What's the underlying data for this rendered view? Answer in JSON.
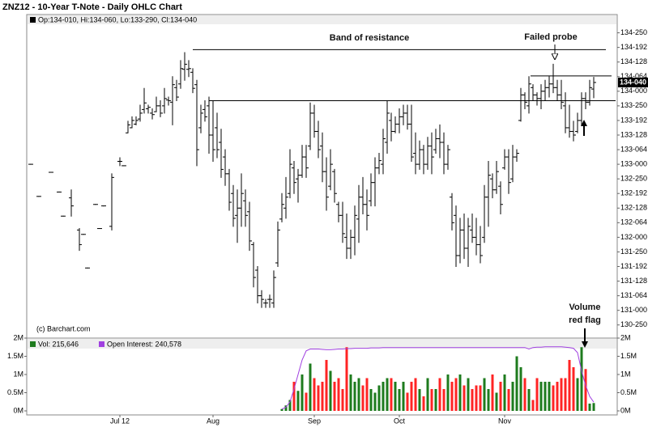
{
  "chart_data": {
    "type": "ohlc",
    "title": "ZNZ12 - 10-Year T-Note - Daily OHLC Chart",
    "credit": "(c) Barchart.com",
    "annotations": [
      "Band of resistance",
      "Failed probe",
      "Volume",
      "red flag"
    ],
    "last_label": "134-040",
    "last_color": "#000000",
    "resistance_levels": [
      134.57,
      133.87,
      134.21
    ],
    "categories": [
      null,
      null,
      null,
      null,
      null,
      null,
      null,
      null,
      null,
      null,
      null,
      null,
      null,
      null,
      null,
      null,
      null,
      null,
      null,
      null,
      null,
      null,
      "Jul 12",
      null,
      null,
      null,
      null,
      null,
      null,
      null,
      null,
      null,
      null,
      null,
      null,
      null,
      null,
      null,
      null,
      null,
      null,
      null,
      null,
      null,
      null,
      "Aug",
      null,
      null,
      null,
      null,
      null,
      null,
      null,
      null,
      null,
      null,
      null,
      null,
      null,
      null,
      null,
      null,
      null,
      null,
      null,
      null,
      null,
      null,
      null,
      null,
      "Sep",
      null,
      null,
      null,
      null,
      null,
      null,
      null,
      null,
      null,
      null,
      null,
      null,
      null,
      null,
      null,
      null,
      null,
      null,
      null,
      null,
      "Oct",
      null,
      null,
      null,
      null,
      null,
      null,
      null,
      null,
      null,
      null,
      null,
      null,
      null,
      null,
      null,
      null,
      null,
      null,
      null,
      null,
      null,
      null,
      null,
      null,
      null,
      "Nov",
      null,
      null,
      null,
      null,
      null,
      null,
      null,
      null,
      null,
      null,
      null,
      null,
      null,
      null,
      null,
      null,
      null,
      null,
      null,
      null,
      null,
      null
    ],
    "series": [
      {
        "name": "Op:134-010, Hi:134-060, Lo:133-290, Cl:134-040",
        "color": "#000000",
        "open": [
          133.0,
          null,
          132.56,
          null,
          null,
          132.89,
          null,
          132.62,
          132.29,
          null,
          132.54,
          null,
          132.1,
          132.04,
          131.58,
          null,
          132.45,
          132.12,
          132.43,
          null,
          132.15,
          null,
          133.04,
          132.98,
          133.43,
          133.5,
          133.55,
          133.62,
          133.75,
          133.76,
          133.7,
          133.72,
          133.8,
          133.8,
          133.88,
          133.85,
          134.05,
          134.1,
          134.3,
          134.3,
          134.26,
          134.09,
          133.5,
          133.75,
          133.8,
          133.4,
          133.5,
          133.3,
          133.1,
          132.87,
          132.6,
          132.3,
          132.4,
          132.5,
          132.35,
          131.9,
          131.55,
          131.2,
          131.1,
          131.15,
          131.1,
          131.65,
          132.25,
          132.4,
          132.6,
          132.95,
          132.8,
          132.85,
          133.1,
          133.25,
          133.7,
          133.45,
          133.25,
          132.9,
          132.7,
          132.9,
          132.45,
          132.3,
          132.0,
          131.85,
          132.0,
          132.25,
          132.55,
          132.45,
          132.5,
          132.75,
          132.95,
          133.0,
          133.3,
          133.6,
          133.45,
          133.55,
          133.65,
          133.7,
          133.55,
          133.15,
          133.0,
          133.2,
          133.0,
          133.25,
          133.2,
          133.35,
          133.3,
          133.0,
          132.55,
          132.3,
          131.75,
          132.1,
          131.85,
          132.1,
          132.0,
          131.9,
          132.0,
          132.55,
          132.8,
          132.65,
          132.7,
          132.95,
          133.1,
          132.8,
          133.1,
          133.6,
          133.95,
          133.8,
          134.05,
          133.95,
          133.9,
          134.0,
          134.05,
          134.1,
          134.05,
          133.95,
          133.8,
          133.5,
          133.45,
          133.45,
          133.6,
          133.9,
          133.85,
          134.03
        ],
        "high": [
          133.0,
          null,
          132.56,
          null,
          null,
          132.89,
          null,
          132.62,
          132.29,
          null,
          132.65,
          null,
          132.12,
          132.04,
          131.58,
          null,
          132.45,
          132.12,
          132.43,
          null,
          132.87,
          null,
          133.09,
          132.98,
          133.59,
          133.65,
          133.65,
          133.81,
          134.04,
          133.81,
          133.76,
          133.92,
          133.87,
          134.04,
          133.92,
          134.2,
          134.15,
          134.42,
          134.53,
          134.42,
          134.31,
          134.15,
          133.81,
          133.87,
          133.92,
          133.87,
          133.7,
          133.48,
          133.2,
          132.93,
          132.71,
          132.65,
          132.87,
          132.65,
          132.48,
          131.93,
          131.6,
          131.27,
          131.15,
          131.21,
          131.54,
          132.21,
          132.6,
          132.82,
          133.2,
          133.04,
          132.93,
          133.26,
          133.26,
          133.84,
          133.81,
          133.59,
          133.43,
          133.09,
          133.2,
          132.93,
          132.48,
          132.48,
          132.32,
          132.1,
          132.43,
          132.71,
          132.82,
          132.65,
          132.87,
          133.09,
          133.15,
          133.48,
          133.87,
          133.7,
          133.65,
          133.76,
          133.81,
          133.81,
          133.81,
          133.43,
          133.32,
          133.26,
          133.37,
          133.43,
          133.48,
          133.54,
          133.43,
          133.26,
          132.6,
          132.43,
          132.26,
          132.32,
          132.26,
          132.32,
          132.26,
          132.15,
          132.71,
          133.04,
          132.87,
          133.04,
          132.76,
          133.2,
          133.2,
          133.26,
          133.2,
          134.04,
          133.98,
          134.2,
          134.09,
          133.98,
          134.09,
          134.15,
          134.2,
          134.37,
          134.15,
          134.15,
          133.98,
          133.81,
          133.59,
          133.7,
          133.98,
          133.98,
          134.15,
          134.19
        ],
        "low": [
          133.0,
          null,
          132.56,
          null,
          null,
          132.89,
          null,
          132.62,
          132.29,
          null,
          132.29,
          null,
          131.82,
          132.04,
          131.58,
          null,
          132.45,
          132.12,
          132.43,
          null,
          132.1,
          null,
          132.98,
          132.98,
          133.43,
          133.5,
          133.54,
          133.59,
          133.7,
          133.7,
          133.62,
          133.72,
          133.65,
          133.7,
          133.81,
          133.54,
          133.87,
          134.04,
          134.15,
          134.2,
          133.98,
          132.98,
          133.43,
          133.59,
          133.15,
          133.04,
          133.09,
          132.82,
          132.71,
          132.37,
          132.15,
          131.93,
          132.15,
          132.15,
          131.82,
          131.32,
          131.1,
          131.04,
          131.04,
          131.04,
          131.04,
          131.6,
          132.21,
          132.26,
          132.54,
          132.6,
          132.48,
          132.82,
          132.82,
          133.2,
          133.37,
          133.09,
          132.76,
          132.37,
          132.65,
          132.48,
          132.21,
          131.93,
          131.71,
          131.71,
          131.76,
          131.93,
          132.32,
          132.1,
          132.43,
          132.43,
          132.87,
          132.87,
          133.15,
          133.32,
          133.43,
          133.43,
          133.54,
          133.48,
          133.04,
          132.87,
          132.93,
          132.87,
          132.93,
          132.87,
          133.15,
          133.09,
          132.87,
          132.93,
          132.1,
          131.6,
          131.65,
          131.71,
          131.6,
          131.93,
          131.76,
          131.65,
          131.93,
          132.15,
          132.54,
          132.6,
          132.32,
          132.93,
          132.6,
          132.76,
          133.04,
          133.59,
          133.76,
          133.7,
          133.87,
          133.81,
          133.76,
          133.87,
          133.92,
          133.98,
          133.87,
          133.76,
          133.43,
          133.37,
          133.32,
          133.43,
          133.54,
          133.76,
          133.81,
          133.91
        ],
        "close": [
          133.0,
          null,
          132.56,
          null,
          null,
          132.89,
          null,
          132.62,
          132.29,
          null,
          132.43,
          null,
          131.9,
          132.04,
          131.58,
          null,
          132.45,
          132.12,
          132.43,
          null,
          132.82,
          null,
          133.04,
          132.98,
          133.54,
          133.6,
          133.6,
          133.7,
          133.84,
          133.78,
          133.68,
          133.8,
          133.7,
          133.9,
          133.87,
          134.09,
          133.92,
          134.31,
          134.37,
          134.31,
          134.04,
          133.2,
          133.7,
          133.65,
          133.4,
          133.2,
          133.2,
          132.93,
          132.87,
          132.48,
          132.26,
          132.4,
          132.6,
          132.3,
          131.95,
          131.45,
          131.2,
          131.15,
          131.1,
          131.15,
          131.45,
          132.1,
          132.45,
          132.55,
          133.0,
          132.75,
          132.85,
          133.1,
          132.95,
          133.7,
          133.45,
          133.2,
          132.9,
          132.55,
          133.0,
          132.6,
          132.3,
          132.05,
          131.85,
          132.0,
          132.3,
          132.55,
          132.45,
          132.3,
          132.75,
          132.95,
          133.05,
          133.35,
          133.7,
          133.45,
          133.55,
          133.65,
          133.7,
          133.55,
          133.1,
          133.0,
          133.2,
          133.0,
          133.25,
          133.1,
          133.35,
          133.3,
          133.0,
          133.2,
          132.2,
          131.75,
          132.1,
          131.85,
          132.15,
          132.0,
          131.9,
          131.75,
          132.55,
          132.85,
          132.65,
          132.9,
          132.45,
          133.1,
          132.75,
          133.1,
          133.15,
          133.95,
          133.85,
          134.1,
          133.95,
          133.9,
          134.0,
          134.05,
          134.1,
          134.05,
          133.95,
          133.85,
          133.5,
          133.45,
          133.4,
          133.6,
          133.9,
          133.85,
          134.05,
          134.12
        ]
      }
    ],
    "ylim": [
      130.62,
      135.05
    ],
    "yticks": [
      {
        "value": 134.8,
        "label": "134-250"
      },
      {
        "value": 134.6,
        "label": "134-192"
      },
      {
        "value": 134.4,
        "label": "134-128"
      },
      {
        "value": 134.2,
        "label": "134-064"
      },
      {
        "value": 134.0,
        "label": "134-000"
      },
      {
        "value": 133.8,
        "label": "133-250"
      },
      {
        "value": 133.6,
        "label": "133-192"
      },
      {
        "value": 133.4,
        "label": "133-128"
      },
      {
        "value": 133.2,
        "label": "133-064"
      },
      {
        "value": 133.0,
        "label": "133-000"
      },
      {
        "value": 132.8,
        "label": "132-250"
      },
      {
        "value": 132.6,
        "label": "132-192"
      },
      {
        "value": 132.4,
        "label": "132-128"
      },
      {
        "value": 132.2,
        "label": "132-064"
      },
      {
        "value": 132.0,
        "label": "132-000"
      },
      {
        "value": 131.8,
        "label": "131-250"
      },
      {
        "value": 131.6,
        "label": "131-192"
      },
      {
        "value": 131.4,
        "label": "131-128"
      },
      {
        "value": 131.2,
        "label": "131-064"
      },
      {
        "value": 131.0,
        "label": "131-000"
      },
      {
        "value": 130.8,
        "label": "130-250"
      }
    ],
    "volume": {
      "ylim": [
        0,
        2000000
      ],
      "yticks": [
        {
          "value": 0,
          "label": "0M"
        },
        {
          "value": 500000,
          "label": "0.5M"
        },
        {
          "value": 1000000,
          "label": "1M"
        },
        {
          "value": 1500000,
          "label": "1.5M"
        },
        {
          "value": 2000000,
          "label": "2M"
        }
      ],
      "series": [
        {
          "name": "Vol: 215,646",
          "color": "#1e7b1e",
          "up_color": "#1e7b1e",
          "down_color": "#ff2424",
          "values": [
            null,
            null,
            null,
            null,
            null,
            null,
            null,
            null,
            null,
            null,
            null,
            null,
            null,
            null,
            null,
            null,
            null,
            null,
            null,
            null,
            null,
            null,
            null,
            null,
            null,
            null,
            null,
            null,
            null,
            null,
            null,
            null,
            null,
            null,
            null,
            null,
            null,
            null,
            null,
            null,
            null,
            null,
            null,
            null,
            null,
            null,
            null,
            null,
            null,
            null,
            null,
            null,
            null,
            null,
            null,
            null,
            null,
            null,
            null,
            null,
            null,
            null,
            50000,
            150000,
            300000,
            800000,
            550000,
            1000000,
            500000,
            1300000,
            900000,
            700000,
            800000,
            1400000,
            1100000,
            800000,
            900000,
            600000,
            1750000,
            1000000,
            800000,
            900000,
            700000,
            900000,
            600000,
            500000,
            700000,
            800000,
            900000,
            900000,
            800000,
            600000,
            800000,
            500000,
            800000,
            900000,
            600000,
            400000,
            900000,
            600000,
            600000,
            900000,
            600000,
            1000000,
            800000,
            900000,
            1000000,
            700000,
            900000,
            600000,
            700000,
            700000,
            900000,
            600000,
            1000000,
            500000,
            800000,
            1000000,
            600000,
            800000,
            1500000,
            1200000,
            900000,
            600000,
            300000,
            900000,
            800000,
            800000,
            800000,
            700000,
            800000,
            900000,
            900000,
            1400000,
            1200000,
            900000,
            1750000,
            1150000,
            200000,
            215646
          ]
        },
        {
          "name": "Open Interest: 240,578",
          "color": "#a040e0",
          "values": [
            null,
            null,
            null,
            null,
            null,
            null,
            null,
            null,
            null,
            null,
            null,
            null,
            null,
            null,
            null,
            null,
            null,
            null,
            null,
            null,
            null,
            null,
            null,
            null,
            null,
            null,
            null,
            null,
            null,
            null,
            null,
            null,
            null,
            null,
            null,
            null,
            null,
            null,
            null,
            null,
            null,
            null,
            null,
            null,
            null,
            null,
            null,
            null,
            null,
            null,
            null,
            null,
            null,
            null,
            null,
            null,
            null,
            null,
            null,
            null,
            null,
            null,
            50000,
            100000,
            250000,
            600000,
            1000000,
            1400000,
            1650000,
            1700000,
            1700000,
            1700000,
            1690000,
            1680000,
            1680000,
            1690000,
            1700000,
            1700000,
            1710000,
            1710000,
            1720000,
            1720000,
            1720000,
            1720000,
            1730000,
            1730000,
            1730000,
            1740000,
            1740000,
            1740000,
            1740000,
            1740000,
            1740000,
            1740000,
            1740000,
            1740000,
            1740000,
            1740000,
            1740000,
            1740000,
            1740000,
            1740000,
            1740000,
            1740000,
            1740000,
            1740000,
            1740000,
            1740000,
            1740000,
            1740000,
            1740000,
            1740000,
            1740000,
            1740000,
            1740000,
            1740000,
            1740000,
            1740000,
            1740000,
            1740000,
            1740000,
            1740000,
            1740000,
            1700000,
            1740000,
            1750000,
            1750000,
            1760000,
            1760000,
            1760000,
            1760000,
            1760000,
            1750000,
            1740000,
            1720000,
            1600000,
            1100000,
            700000,
            400000,
            240578
          ]
        }
      ]
    }
  }
}
